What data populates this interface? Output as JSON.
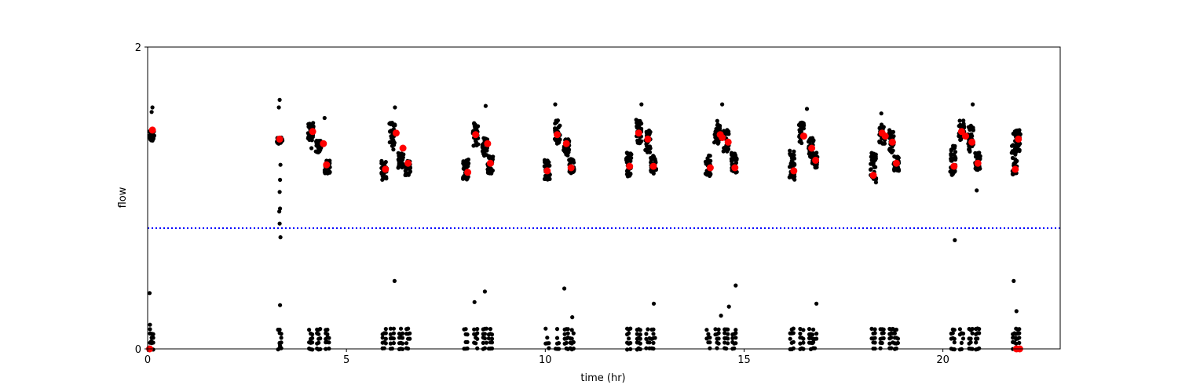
{
  "chart_data": {
    "type": "scatter",
    "title": "",
    "xlabel": "time (hr)",
    "ylabel": "flow",
    "xlim": [
      0,
      22.95
    ],
    "ylim": [
      0,
      2
    ],
    "x_ticks": [
      0,
      5,
      10,
      15,
      20
    ],
    "y_ticks": [
      0,
      2
    ],
    "grid": false,
    "threshold": {
      "y": 0.8,
      "color": "#0000ff",
      "style": "dotted"
    },
    "colors": {
      "raw": "#000000",
      "mean": "#ff0000",
      "threshold": "#0000ff",
      "frame": "#000000"
    },
    "bursts": [
      {
        "x": 0.1,
        "segments": [
          [
            0.0,
            1.45,
            1.38,
            1.45
          ]
        ],
        "low": true
      },
      {
        "x": 3.32,
        "segments": [
          [
            0.0,
            1.4,
            1.36,
            1.4
          ]
        ],
        "low": true
      },
      {
        "x": 4.1,
        "segments": [
          [
            0.0,
            1.5,
            1.38,
            1.43
          ],
          [
            0.2,
            1.38,
            1.3,
            1.36
          ],
          [
            0.42,
            1.25,
            1.16,
            1.21
          ]
        ],
        "low": true
      },
      {
        "x": 5.95,
        "segments": [
          [
            0.0,
            1.25,
            1.12,
            1.18
          ],
          [
            0.2,
            1.5,
            1.32,
            1.42
          ],
          [
            0.42,
            1.3,
            1.2,
            1.26
          ],
          [
            0.6,
            1.25,
            1.15,
            1.22
          ]
        ],
        "low": true
      },
      {
        "x": 8.0,
        "segments": [
          [
            0.0,
            1.26,
            1.12,
            1.16
          ],
          [
            0.25,
            1.5,
            1.34,
            1.43
          ],
          [
            0.48,
            1.4,
            1.28,
            1.35
          ],
          [
            0.62,
            1.28,
            1.16,
            1.22
          ]
        ],
        "low": true
      },
      {
        "x": 10.05,
        "segments": [
          [
            0.0,
            1.26,
            1.12,
            1.18
          ],
          [
            0.25,
            1.52,
            1.36,
            1.42
          ],
          [
            0.48,
            1.4,
            1.28,
            1.36
          ],
          [
            0.62,
            1.26,
            1.16,
            1.2
          ]
        ],
        "low": true
      },
      {
        "x": 12.1,
        "segments": [
          [
            0.0,
            1.3,
            1.14,
            1.21
          ],
          [
            0.25,
            1.52,
            1.36,
            1.43
          ],
          [
            0.48,
            1.45,
            1.3,
            1.39
          ],
          [
            0.62,
            1.28,
            1.16,
            1.21
          ]
        ],
        "low": true
      },
      {
        "x": 14.1,
        "segments": [
          [
            0.0,
            1.3,
            1.14,
            1.2
          ],
          [
            0.22,
            1.52,
            1.36,
            1.43
          ],
          [
            0.45,
            1.45,
            1.3,
            1.37
          ],
          [
            0.65,
            1.3,
            1.16,
            1.2
          ]
        ],
        "low": true
      },
      {
        "x": 16.2,
        "segments": [
          [
            0.0,
            1.32,
            1.12,
            1.18
          ],
          [
            0.25,
            1.5,
            1.36,
            1.41
          ],
          [
            0.48,
            1.4,
            1.26,
            1.34
          ],
          [
            0.58,
            1.3,
            1.2,
            1.25
          ]
        ],
        "low": true
      },
      {
        "x": 18.25,
        "segments": [
          [
            0.0,
            1.3,
            1.1,
            1.15
          ],
          [
            0.22,
            1.5,
            1.36,
            1.43
          ],
          [
            0.45,
            1.45,
            1.3,
            1.37
          ],
          [
            0.58,
            1.28,
            1.18,
            1.23
          ]
        ],
        "low": true
      },
      {
        "x": 20.25,
        "segments": [
          [
            0.0,
            1.35,
            1.14,
            1.2
          ],
          [
            0.22,
            1.52,
            1.38,
            1.44
          ],
          [
            0.45,
            1.48,
            1.3,
            1.37
          ],
          [
            0.62,
            1.3,
            1.18,
            1.23
          ]
        ],
        "low": true
      },
      {
        "x": 21.8,
        "segments": [
          [
            0.0,
            1.45,
            1.14,
            1.19
          ],
          [
            0.08,
            1.45,
            1.3,
            1.39
          ]
        ],
        "low": true
      }
    ],
    "extra_points": [
      [
        0.1,
        1.57
      ],
      [
        0.12,
        1.6
      ],
      [
        0.05,
        0.37
      ],
      [
        0.06,
        0.16
      ],
      [
        0.09,
        0.05
      ],
      [
        3.32,
        1.65
      ],
      [
        3.3,
        1.6
      ],
      [
        3.34,
        1.22
      ],
      [
        3.33,
        1.12
      ],
      [
        3.32,
        1.04
      ],
      [
        3.33,
        0.93
      ],
      [
        3.31,
        0.91
      ],
      [
        3.32,
        0.83
      ],
      [
        3.34,
        0.74
      ],
      [
        3.33,
        0.29
      ],
      [
        3.32,
        0.04
      ],
      [
        3.33,
        0.02
      ],
      [
        4.12,
        1.33
      ],
      [
        4.45,
        1.53
      ],
      [
        6.21,
        0.45
      ],
      [
        8.22,
        0.31
      ],
      [
        8.48,
        0.38
      ],
      [
        10.48,
        0.4
      ],
      [
        10.68,
        0.21
      ],
      [
        12.73,
        0.3
      ],
      [
        14.42,
        0.22
      ],
      [
        14.62,
        0.28
      ],
      [
        14.79,
        0.42
      ],
      [
        16.82,
        0.3
      ],
      [
        20.3,
        0.72
      ],
      [
        20.85,
        1.05
      ],
      [
        21.78,
        0.45
      ],
      [
        21.85,
        0.25
      ],
      [
        20.75,
        1.62
      ],
      [
        10.25,
        1.62
      ],
      [
        12.42,
        1.62
      ],
      [
        14.45,
        1.62
      ],
      [
        16.58,
        1.59
      ],
      [
        18.45,
        1.56
      ],
      [
        8.5,
        1.61
      ],
      [
        6.22,
        1.6
      ]
    ],
    "mean_points": [
      [
        0.12,
        1.45
      ],
      [
        3.32,
        1.39
      ],
      [
        4.15,
        1.44
      ],
      [
        4.42,
        1.36
      ],
      [
        4.5,
        1.22
      ],
      [
        5.98,
        1.19
      ],
      [
        6.25,
        1.43
      ],
      [
        6.42,
        1.33
      ],
      [
        6.55,
        1.23
      ],
      [
        8.05,
        1.17
      ],
      [
        8.25,
        1.42
      ],
      [
        8.55,
        1.36
      ],
      [
        8.62,
        1.23
      ],
      [
        10.05,
        1.18
      ],
      [
        10.3,
        1.42
      ],
      [
        10.53,
        1.36
      ],
      [
        10.65,
        1.2
      ],
      [
        12.12,
        1.21
      ],
      [
        12.35,
        1.43
      ],
      [
        12.58,
        1.39
      ],
      [
        12.72,
        1.21
      ],
      [
        14.15,
        1.2
      ],
      [
        14.4,
        1.42
      ],
      [
        14.45,
        1.4
      ],
      [
        14.6,
        1.37
      ],
      [
        14.77,
        1.2
      ],
      [
        16.25,
        1.18
      ],
      [
        16.5,
        1.41
      ],
      [
        16.7,
        1.33
      ],
      [
        16.8,
        1.25
      ],
      [
        18.25,
        1.15
      ],
      [
        18.47,
        1.43
      ],
      [
        18.55,
        1.41
      ],
      [
        18.73,
        1.37
      ],
      [
        18.83,
        1.23
      ],
      [
        20.28,
        1.21
      ],
      [
        20.47,
        1.44
      ],
      [
        20.57,
        1.41
      ],
      [
        20.73,
        1.37
      ],
      [
        20.88,
        1.23
      ],
      [
        21.82,
        1.19
      ],
      [
        21.9,
        1.39
      ],
      [
        0.05,
        0.0
      ],
      [
        21.85,
        0.0
      ],
      [
        21.93,
        0.0
      ]
    ]
  }
}
